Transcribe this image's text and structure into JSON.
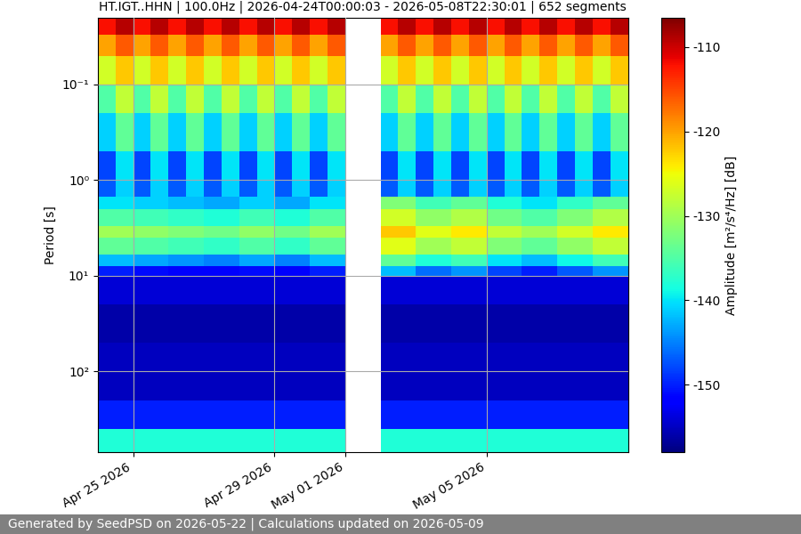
{
  "chart_data": {
    "type": "heatmap",
    "title": "HT.IGT..HHN | 100.0Hz | 2026-04-24T00:00:03 - 2026-05-08T22:30:01 | 652 segments",
    "y_label": "Period [s]",
    "footer": "Generated by SeedPSD on 2026-05-22 | Calculations updated on 2026-05-09",
    "log": "y",
    "grid": true,
    "xlim": [
      "2026-04-24T00:00",
      "2026-05-09T00:00"
    ],
    "xticks": [
      {
        "value": "2026-04-25T00:00",
        "label": "Apr 25 2026"
      },
      {
        "value": "2026-04-29T00:00",
        "label": "Apr 29 2026"
      },
      {
        "value": "2026-05-01T00:00",
        "label": "May 01 2026"
      },
      {
        "value": "2026-05-05T00:00",
        "label": "May 05 2026"
      }
    ],
    "ylim": [
      700,
      0.02
    ],
    "yticks": [
      {
        "value": 0.1,
        "label": "10⁻¹"
      },
      {
        "value": 1,
        "label": "10⁰"
      },
      {
        "value": 10,
        "label": "10¹"
      },
      {
        "value": 100,
        "label": "10²"
      }
    ],
    "x_edges": [
      "2026-04-24T00:00",
      "2026-04-24T12:00",
      "2026-04-25T00:00",
      "2026-04-25T12:00",
      "2026-04-26T00:00",
      "2026-04-26T12:00",
      "2026-04-27T00:00",
      "2026-04-27T12:00",
      "2026-04-28T00:00",
      "2026-04-28T12:00",
      "2026-04-29T00:00",
      "2026-04-29T12:00",
      "2026-04-30T00:00",
      "2026-04-30T12:00",
      "2026-05-01T00:00",
      "2026-05-01T12:00",
      "2026-05-02T00:00",
      "2026-05-02T12:00",
      "2026-05-03T00:00",
      "2026-05-03T12:00",
      "2026-05-04T00:00",
      "2026-05-04T12:00",
      "2026-05-05T00:00",
      "2026-05-05T12:00",
      "2026-05-06T00:00",
      "2026-05-06T12:00",
      "2026-05-07T00:00",
      "2026-05-07T12:00",
      "2026-05-08T00:00",
      "2026-05-08T12:00",
      "2026-05-09T00:00"
    ],
    "period_edges": [
      0.02,
      0.03,
      0.05,
      0.1,
      0.2,
      0.5,
      1,
      1.5,
      2,
      3,
      4,
      6,
      8,
      10,
      20,
      50,
      200,
      400,
      700
    ],
    "cells": [
      [
        -112,
        -109,
        -112,
        -109,
        -112,
        -109,
        -112,
        -109,
        -112,
        -109,
        -112,
        -109,
        -112,
        -109,
        null,
        null,
        -112,
        -109,
        -112,
        -109,
        -112,
        -109,
        -112,
        -109,
        -112,
        -109,
        -112,
        -109,
        -112,
        -109
      ],
      [
        -120,
        -116,
        -120,
        -116,
        -120,
        -116,
        -120,
        -116,
        -120,
        -116,
        -120,
        -116,
        -120,
        -116,
        null,
        null,
        -120,
        -116,
        -120,
        -116,
        -120,
        -116,
        -120,
        -116,
        -120,
        -116,
        -120,
        -116,
        -120,
        -116
      ],
      [
        -127,
        -122,
        -127,
        -122,
        -127,
        -122,
        -127,
        -122,
        -127,
        -122,
        -127,
        -122,
        -127,
        -122,
        null,
        null,
        -127,
        -122,
        -127,
        -122,
        -127,
        -122,
        -127,
        -122,
        -127,
        -122,
        -127,
        -122,
        -127,
        -122
      ],
      [
        -135,
        -128,
        -135,
        -128,
        -135,
        -128,
        -135,
        -128,
        -135,
        -128,
        -135,
        -128,
        -135,
        -128,
        null,
        null,
        -135,
        -128,
        -135,
        -128,
        -135,
        -128,
        -135,
        -128,
        -135,
        -128,
        -135,
        -128,
        -135,
        -128
      ],
      [
        -141,
        -134,
        -141,
        -134,
        -141,
        -134,
        -141,
        -134,
        -141,
        -134,
        -141,
        -134,
        -141,
        -134,
        null,
        null,
        -141,
        -134,
        -141,
        -134,
        -141,
        -134,
        -141,
        -134,
        -141,
        -134,
        -141,
        -134,
        -141,
        -134
      ],
      [
        -148,
        -140,
        -148,
        -140,
        -148,
        -140,
        -148,
        -140,
        -148,
        -140,
        -148,
        -140,
        -148,
        -140,
        null,
        null,
        -148,
        -140,
        -148,
        -140,
        -148,
        -140,
        -148,
        -140,
        -148,
        -140,
        -148,
        -140,
        -148,
        -140
      ],
      [
        -147,
        -141,
        -147,
        -141,
        -147,
        -141,
        -147,
        -141,
        -147,
        -141,
        -147,
        -141,
        -147,
        -141,
        null,
        null,
        -147,
        -141,
        -147,
        -141,
        -147,
        -141,
        -147,
        -141,
        -147,
        -141,
        -147,
        -141,
        -147,
        -141
      ],
      [
        -140,
        -140,
        -141,
        -141,
        -142,
        -142,
        -143,
        -143,
        -141,
        -141,
        -143,
        -143,
        -140,
        -140,
        null,
        null,
        -132,
        -132,
        -136,
        -136,
        -134,
        -134,
        -138,
        -138,
        -140,
        -140,
        -137,
        -137,
        -134,
        -134
      ],
      [
        -135,
        -135,
        -136,
        -136,
        -137,
        -137,
        -138,
        -138,
        -136,
        -136,
        -138,
        -138,
        -135,
        -135,
        null,
        null,
        -127,
        -127,
        -131,
        -131,
        -129,
        -129,
        -133,
        -133,
        -135,
        -135,
        -132,
        -132,
        -129,
        -129
      ],
      [
        -130,
        -130,
        -131,
        -131,
        -132,
        -132,
        -133,
        -133,
        -131,
        -131,
        -133,
        -133,
        -130,
        -130,
        null,
        null,
        -122,
        -122,
        -126,
        -126,
        -124,
        -124,
        -128,
        -128,
        -130,
        -130,
        -127,
        -127,
        -124,
        -124
      ],
      [
        -134,
        -134,
        -135,
        -135,
        -136,
        -136,
        -137,
        -137,
        -135,
        -135,
        -137,
        -137,
        -134,
        -134,
        null,
        null,
        -126,
        -126,
        -130,
        -130,
        -128,
        -128,
        -132,
        -132,
        -134,
        -134,
        -131,
        -131,
        -128,
        -128
      ],
      [
        -142,
        -142,
        -143,
        -143,
        -144,
        -144,
        -145,
        -145,
        -143,
        -143,
        -145,
        -145,
        -142,
        -142,
        null,
        null,
        -134,
        -134,
        -138,
        -138,
        -136,
        -136,
        -140,
        -140,
        -142,
        -142,
        -139,
        -139,
        -136,
        -136
      ],
      [
        -150,
        -150,
        -151,
        -151,
        -152,
        -152,
        -152,
        -152,
        -151,
        -151,
        -152,
        -152,
        -150,
        -150,
        null,
        null,
        -142,
        -142,
        -146,
        -146,
        -144,
        -144,
        -148,
        -148,
        -150,
        -150,
        -147,
        -147,
        -144,
        -144
      ],
      [
        -154,
        -154,
        -154,
        -154,
        -154,
        -154,
        -154,
        -154,
        -154,
        -154,
        -154,
        -154,
        -154,
        -154,
        null,
        null,
        -154,
        -154,
        -154,
        -154,
        -154,
        -154,
        -154,
        -154,
        -154,
        -154,
        -154,
        -154,
        -154,
        -154
      ],
      [
        -156,
        -156,
        -156,
        -156,
        -156,
        -156,
        -156,
        -156,
        -156,
        -156,
        -156,
        -156,
        -156,
        -156,
        null,
        null,
        -156,
        -156,
        -156,
        -156,
        -156,
        -156,
        -156,
        -156,
        -156,
        -156,
        -156,
        -156,
        -156,
        -156
      ],
      [
        -155,
        -155,
        -155,
        -155,
        -155,
        -155,
        -155,
        -155,
        -155,
        -155,
        -155,
        -155,
        -155,
        -155,
        null,
        null,
        -155,
        -155,
        -155,
        -155,
        -155,
        -155,
        -155,
        -155,
        -155,
        -155,
        -155,
        -155,
        -155,
        -155
      ],
      [
        -150,
        -150,
        -150,
        -150,
        -150,
        -150,
        -150,
        -150,
        -150,
        -150,
        -150,
        -150,
        -150,
        -150,
        null,
        null,
        -150,
        -150,
        -150,
        -150,
        -150,
        -150,
        -150,
        -150,
        -150,
        -150,
        -150,
        -150,
        -150,
        -150
      ],
      [
        -138,
        -138,
        -138,
        -138,
        -138,
        -138,
        -138,
        -138,
        -138,
        -138,
        -138,
        -138,
        -138,
        -138,
        null,
        null,
        -138,
        -138,
        -138,
        -138,
        -138,
        -138,
        -138,
        -138,
        -138,
        -138,
        -138,
        -138,
        -138,
        -138
      ]
    ],
    "colorbar": {
      "label": "Amplitude [m²/s⁴/Hz] [dB]",
      "lim": [
        -158,
        -106.5
      ],
      "ticks": [
        -150,
        -140,
        -130,
        -120,
        -110
      ]
    }
  }
}
